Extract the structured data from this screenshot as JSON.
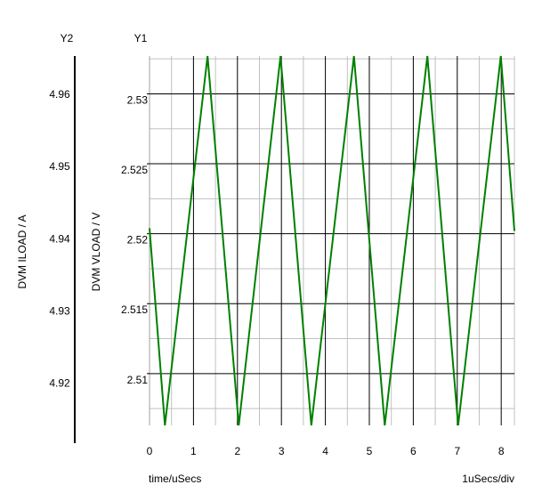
{
  "chart_data": {
    "type": "line",
    "y2_header": "Y2",
    "y1_header": "Y1",
    "y2_label": "DVM ILOAD / A",
    "y1_label": "DVM VLOAD / V",
    "xlabel": "time/uSecs",
    "x_scale_label": "1uSecs/div",
    "xlim": [
      0,
      8.3
    ],
    "y1lim": [
      2.5063,
      2.5327
    ],
    "y2lim": [
      4.9117,
      4.9653
    ],
    "x_ticks": [
      0,
      1,
      2,
      3,
      4,
      5,
      6,
      7,
      8
    ],
    "x_tick_labels": [
      "0",
      "1",
      "2",
      "3",
      "4",
      "5",
      "6",
      "7",
      "8"
    ],
    "y1_ticks": [
      2.51,
      2.515,
      2.52,
      2.525,
      2.53
    ],
    "y1_tick_labels": [
      "2.51",
      "2.515",
      "2.52",
      "2.525",
      "2.53"
    ],
    "y2_ticks": [
      4.92,
      4.93,
      4.94,
      4.95,
      4.96
    ],
    "y2_tick_labels": [
      "4.92",
      "4.93",
      "4.94",
      "4.95",
      "4.96"
    ],
    "grid": true,
    "series": [
      {
        "color": "#008000",
        "x": [
          0,
          0.35,
          1.32,
          2.03,
          2.98,
          3.68,
          4.65,
          5.35,
          6.32,
          7.02,
          7.99,
          8.3
        ],
        "y": [
          2.5204,
          2.5063,
          2.5327,
          2.5063,
          2.5327,
          2.5063,
          2.5327,
          2.5063,
          2.5327,
          2.5063,
          2.5327,
          2.5202
        ]
      }
    ]
  }
}
